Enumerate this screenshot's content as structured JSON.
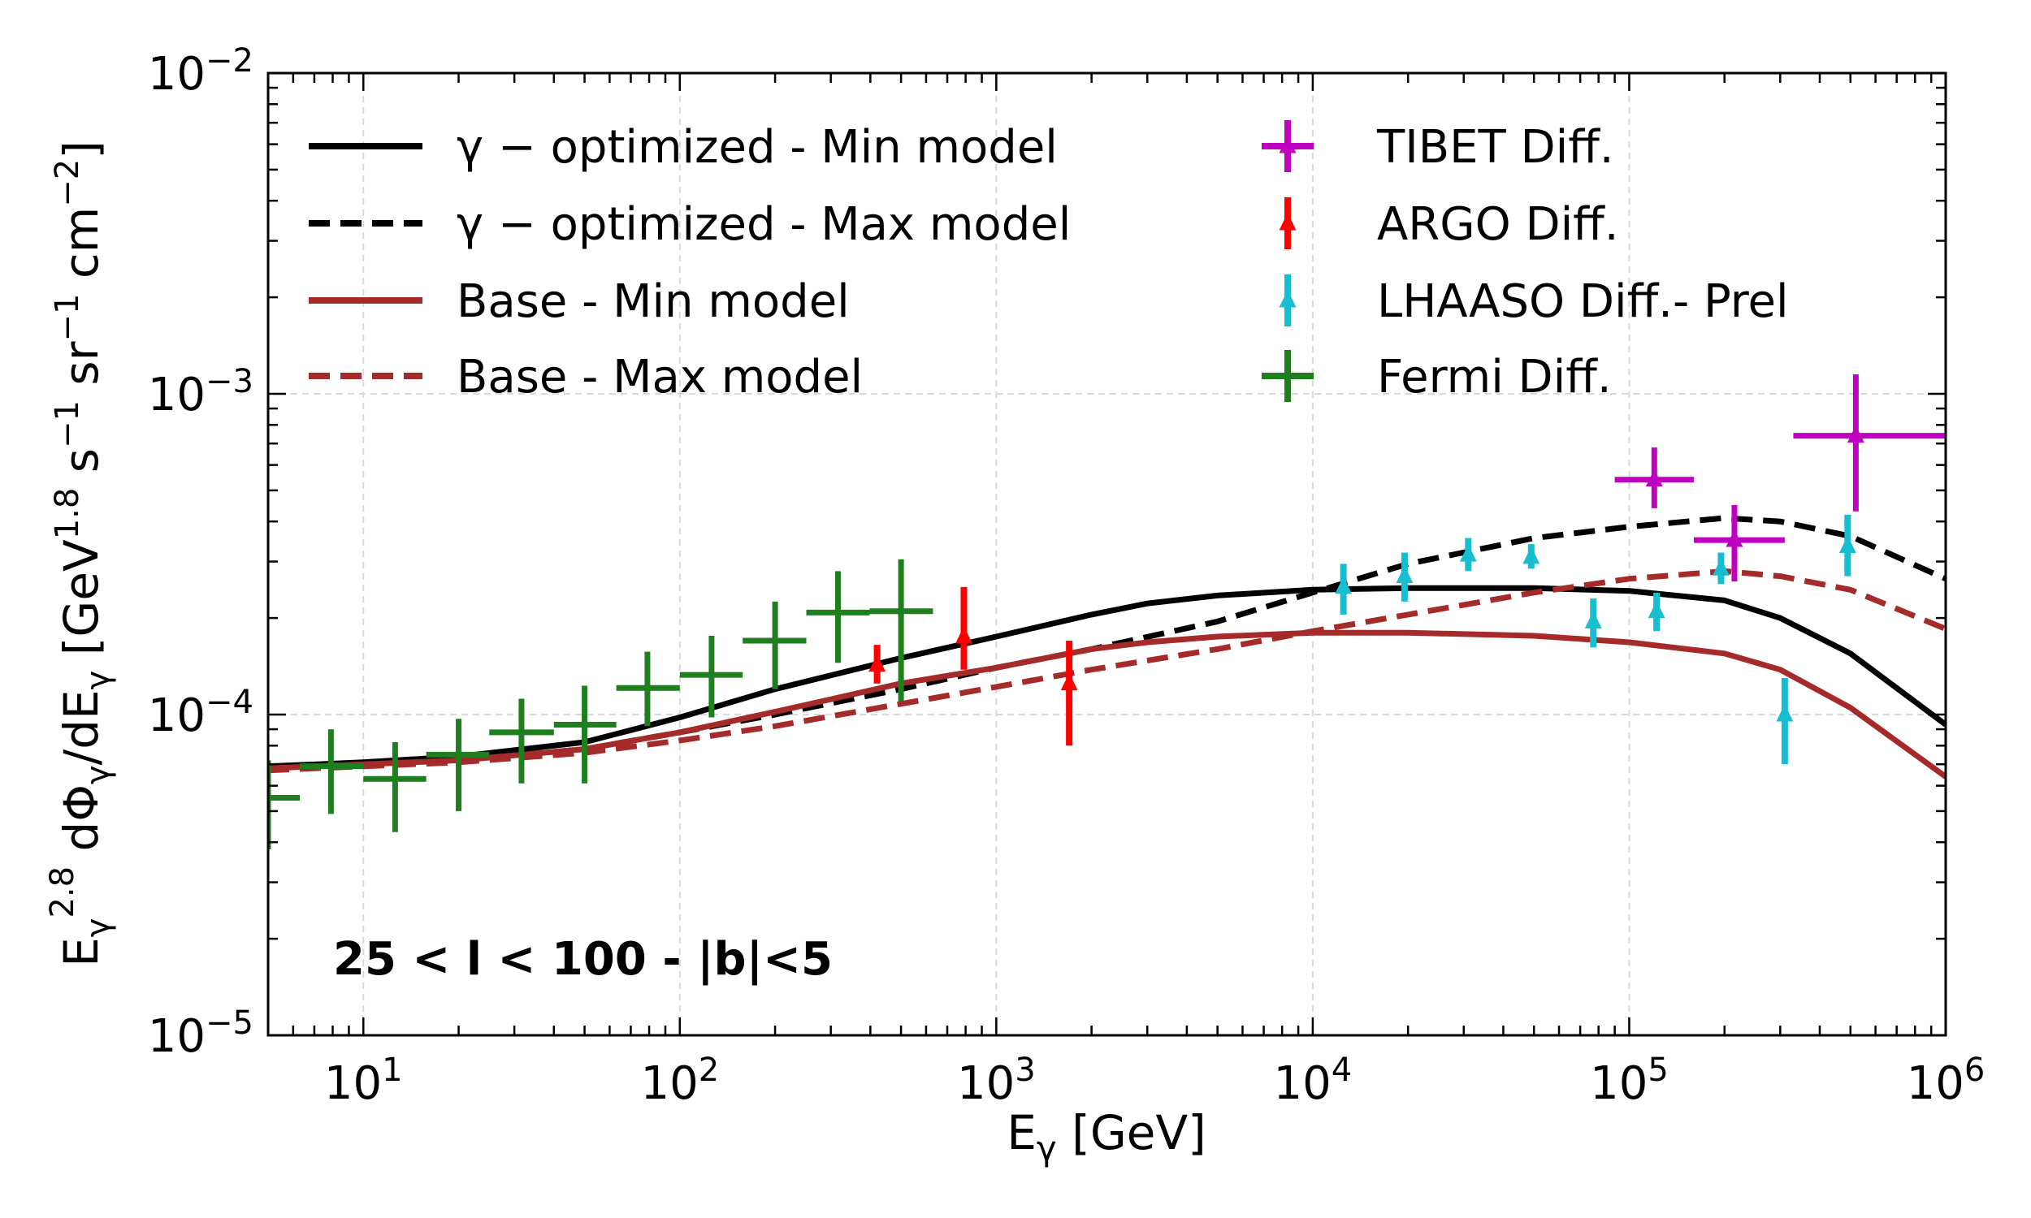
{
  "chart_data": {
    "type": "line",
    "x_scale": "log",
    "y_scale": "log",
    "xlabel": "E_γ  [GeV]",
    "ylabel": "E_γ^2.8 dΦ_γ/dE_γ  [GeV^1.8 s^-1 sr^-1 cm^-2]",
    "xlim": [
      5,
      1000000
    ],
    "ylim": [
      1e-05,
      0.01
    ],
    "x_ticks": [
      {
        "base": "10",
        "exp": "1",
        "value": 10
      },
      {
        "base": "10",
        "exp": "2",
        "value": 100
      },
      {
        "base": "10",
        "exp": "3",
        "value": 1000
      },
      {
        "base": "10",
        "exp": "4",
        "value": 10000
      },
      {
        "base": "10",
        "exp": "5",
        "value": 100000
      },
      {
        "base": "10",
        "exp": "6",
        "value": 1000000
      }
    ],
    "y_ticks": [
      {
        "base": "10",
        "exp": "−5",
        "value": 1e-05
      },
      {
        "base": "10",
        "exp": "−4",
        "value": 0.0001
      },
      {
        "base": "10",
        "exp": "−3",
        "value": 0.001
      },
      {
        "base": "10",
        "exp": "−2",
        "value": 0.01
      }
    ],
    "grid": true,
    "annotation": "25 < l < 100 - |b|<5",
    "series": [
      {
        "name": "γ − optimized - Min model",
        "color": "#000000",
        "dash": "solid",
        "x": [
          5,
          10,
          20,
          50,
          100,
          200,
          500,
          1000,
          2000,
          3000,
          5000,
          10000,
          20000,
          50000,
          100000,
          200000,
          300000,
          500000,
          1000000
        ],
        "y": [
          6.9e-05,
          7.1e-05,
          7.4e-05,
          8.2e-05,
          9.8e-05,
          0.00012,
          0.00015,
          0.000175,
          0.000205,
          0.000222,
          0.000235,
          0.000245,
          0.000248,
          0.000248,
          0.000243,
          0.000227,
          0.0002,
          0.000155,
          9.3e-05
        ]
      },
      {
        "name": "γ − optimized - Max model",
        "color": "#000000",
        "dash": "dashed",
        "x": [
          5,
          10,
          20,
          50,
          100,
          200,
          500,
          1000,
          2000,
          5000,
          10000,
          20000,
          50000,
          100000,
          200000,
          300000,
          500000,
          1000000
        ],
        "y": [
          6.8e-05,
          7e-05,
          7.2e-05,
          7.8e-05,
          8.8e-05,
          0.0001,
          0.00012,
          0.00014,
          0.00016,
          0.000195,
          0.00024,
          0.000295,
          0.000355,
          0.000385,
          0.00041,
          0.0004,
          0.00036,
          0.000265
        ]
      },
      {
        "name": "Base - Min model",
        "color": "#a52a2a",
        "dash": "solid",
        "x": [
          5,
          10,
          20,
          50,
          100,
          200,
          500,
          1000,
          2000,
          3000,
          5000,
          10000,
          20000,
          50000,
          100000,
          200000,
          300000,
          500000,
          1000000
        ],
        "y": [
          6.8e-05,
          7e-05,
          7.2e-05,
          7.8e-05,
          8.8e-05,
          0.000102,
          0.000125,
          0.00014,
          0.00016,
          0.000168,
          0.000175,
          0.00018,
          0.00018,
          0.000176,
          0.000168,
          0.000155,
          0.000138,
          0.000105,
          6.4e-05
        ]
      },
      {
        "name": "Base - Max model",
        "color": "#a52a2a",
        "dash": "dashed",
        "x": [
          5,
          10,
          20,
          50,
          100,
          200,
          500,
          1000,
          2000,
          5000,
          10000,
          20000,
          50000,
          100000,
          200000,
          300000,
          500000,
          1000000
        ],
        "y": [
          6.7e-05,
          6.9e-05,
          7.1e-05,
          7.6e-05,
          8.3e-05,
          9.2e-05,
          0.000108,
          0.000122,
          0.000138,
          0.00016,
          0.000182,
          0.000205,
          0.00024,
          0.000265,
          0.00028,
          0.00027,
          0.000245,
          0.000185
        ]
      }
    ],
    "points": [
      {
        "name": "TIBET Diff.",
        "color": "#c000c0",
        "marker": "triangle",
        "cap": "cross",
        "data": [
          {
            "x": 120000,
            "y": 0.00054,
            "xlo": 90000,
            "xhi": 160000,
            "ylo": 0.00044,
            "yhi": 0.00068
          },
          {
            "x": 215000,
            "y": 0.00035,
            "xlo": 160000,
            "xhi": 310000,
            "ylo": 0.00026,
            "yhi": 0.00045
          },
          {
            "x": 520000,
            "y": 0.00074,
            "xlo": 330000,
            "xhi": 1000000,
            "ylo": 0.00043,
            "yhi": 0.00115
          }
        ]
      },
      {
        "name": "ARGO Diff.",
        "color": "#ff0000",
        "marker": "triangle",
        "cap": "bar",
        "data": [
          {
            "x": 420,
            "y": 0.000143,
            "ylo": 0.000125,
            "yhi": 0.000165
          },
          {
            "x": 790,
            "y": 0.000175,
            "ylo": 0.000138,
            "yhi": 0.00025
          },
          {
            "x": 1700,
            "y": 0.000125,
            "ylo": 8e-05,
            "yhi": 0.00017
          }
        ]
      },
      {
        "name": "LHAASO Diff.- Prel",
        "color": "#17becf",
        "marker": "triangle",
        "cap": "bar",
        "data": [
          {
            "x": 12500,
            "y": 0.00025,
            "ylo": 0.000205,
            "yhi": 0.000295
          },
          {
            "x": 19500,
            "y": 0.00027,
            "ylo": 0.000225,
            "yhi": 0.00032
          },
          {
            "x": 31000,
            "y": 0.000315,
            "ylo": 0.00028,
            "yhi": 0.000355
          },
          {
            "x": 49000,
            "y": 0.00031,
            "ylo": 0.000285,
            "yhi": 0.00034
          },
          {
            "x": 77000,
            "y": 0.000195,
            "ylo": 0.000162,
            "yhi": 0.00023
          },
          {
            "x": 122000,
            "y": 0.00021,
            "ylo": 0.000182,
            "yhi": 0.00024
          },
          {
            "x": 195000,
            "y": 0.000285,
            "ylo": 0.000255,
            "yhi": 0.00032
          },
          {
            "x": 310000,
            "y": 0.0001,
            "ylo": 7e-05,
            "yhi": 0.00013
          },
          {
            "x": 490000,
            "y": 0.000335,
            "ylo": 0.00027,
            "yhi": 0.00042
          }
        ]
      },
      {
        "name": "Fermi Diff.",
        "color": "#1f7f1f",
        "marker": "none",
        "cap": "cross",
        "data": [
          {
            "x": 5.0,
            "y": 5.5e-05,
            "xlo": 4.0,
            "xhi": 6.3,
            "ylo": 3.8e-05,
            "yhi": 7.2e-05
          },
          {
            "x": 7.9,
            "y": 6.9e-05,
            "xlo": 6.3,
            "xhi": 10,
            "ylo": 4.9e-05,
            "yhi": 9e-05
          },
          {
            "x": 12.6,
            "y": 6.3e-05,
            "xlo": 10,
            "xhi": 15.8,
            "ylo": 4.3e-05,
            "yhi": 8.2e-05
          },
          {
            "x": 20,
            "y": 7.5e-05,
            "xlo": 15.8,
            "xhi": 25,
            "ylo": 5e-05,
            "yhi": 9.7e-05
          },
          {
            "x": 31.6,
            "y": 8.8e-05,
            "xlo": 25,
            "xhi": 40,
            "ylo": 6.1e-05,
            "yhi": 0.000112
          },
          {
            "x": 50,
            "y": 9.3e-05,
            "xlo": 40,
            "xhi": 63,
            "ylo": 6.1e-05,
            "yhi": 0.000123
          },
          {
            "x": 79,
            "y": 0.000121,
            "xlo": 63,
            "xhi": 100,
            "ylo": 9.2e-05,
            "yhi": 0.000157
          },
          {
            "x": 126,
            "y": 0.000133,
            "xlo": 100,
            "xhi": 158,
            "ylo": 9.8e-05,
            "yhi": 0.000176
          },
          {
            "x": 200,
            "y": 0.00017,
            "xlo": 158,
            "xhi": 251,
            "ylo": 0.00012,
            "yhi": 0.000225
          },
          {
            "x": 316,
            "y": 0.000208,
            "xlo": 251,
            "xhi": 398,
            "ylo": 0.000145,
            "yhi": 0.00028
          },
          {
            "x": 500,
            "y": 0.00021,
            "xlo": 398,
            "xhi": 631,
            "ylo": 0.00011,
            "yhi": 0.000305
          }
        ]
      }
    ]
  }
}
